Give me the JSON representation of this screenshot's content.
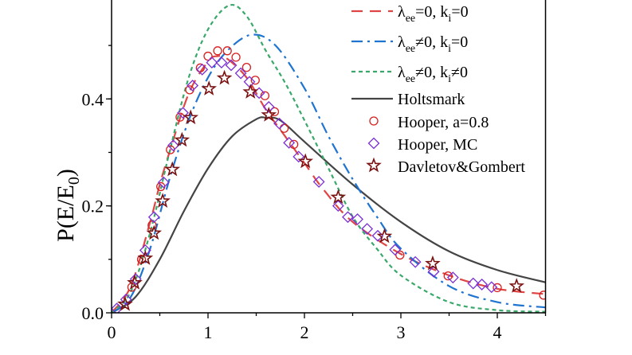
{
  "chart_data": {
    "type": "line",
    "title": "",
    "xlabel": "",
    "ylabel": "P(E/E0)",
    "ylabel_main": "P(E/E",
    "ylabel_sub": "0",
    "ylabel_close": ")",
    "xlim": [
      0,
      4.5
    ],
    "ylim": [
      0,
      0.585
    ],
    "xticks": [
      0,
      1,
      2,
      3,
      4
    ],
    "xtick_labels": [
      "0",
      "1",
      "2",
      "3",
      "4"
    ],
    "yticks": [
      0,
      0.2,
      0.4
    ],
    "ytick_labels": [
      "0.0",
      "0.2",
      "0.4"
    ],
    "grid": false,
    "legend_position": "top-right",
    "series": [
      {
        "name": "λee=0, ki=0",
        "label_main": "λ",
        "label_sub1": "ee",
        "label_mid": "=0, k",
        "label_sub2": "i",
        "label_end": "=0",
        "style": "dash",
        "color": "#e04545",
        "x": [
          0,
          0.2,
          0.4,
          0.5,
          0.6,
          0.8,
          1.0,
          1.1,
          1.2,
          1.4,
          1.6,
          1.8,
          2.0,
          2.2,
          2.5,
          3.0,
          3.5,
          4.0,
          4.5
        ],
        "y": [
          0,
          0.05,
          0.17,
          0.24,
          0.3,
          0.41,
          0.47,
          0.48,
          0.475,
          0.44,
          0.38,
          0.33,
          0.28,
          0.23,
          0.17,
          0.11,
          0.07,
          0.045,
          0.035
        ]
      },
      {
        "name": "λee≠0, ki=0",
        "label_main": "λ",
        "label_sub1": "ee",
        "label_mid": "≠0, k",
        "label_sub2": "i",
        "label_end": "=0",
        "style": "dashdot",
        "color": "#1f74d0",
        "x": [
          0,
          0.2,
          0.4,
          0.6,
          0.8,
          1.0,
          1.2,
          1.45,
          1.7,
          2.0,
          2.25,
          2.5,
          2.75,
          3.0,
          3.5,
          4.0,
          4.5
        ],
        "y": [
          0,
          0.03,
          0.12,
          0.25,
          0.36,
          0.44,
          0.49,
          0.52,
          0.5,
          0.42,
          0.33,
          0.25,
          0.18,
          0.12,
          0.05,
          0.02,
          0.01
        ]
      },
      {
        "name": "λee≠0, ki≠0",
        "label_main": "λ",
        "label_sub1": "ee",
        "label_mid": "≠0, k",
        "label_sub2": "i",
        "label_end": "≠0",
        "style": "shortdash",
        "color": "#3aa86a",
        "x": [
          0,
          0.2,
          0.4,
          0.6,
          0.8,
          1.0,
          1.22,
          1.4,
          1.6,
          1.8,
          2.0,
          2.25,
          2.5,
          2.75,
          3.0,
          3.5,
          4.0,
          4.5
        ],
        "y": [
          0,
          0.04,
          0.15,
          0.3,
          0.44,
          0.53,
          0.575,
          0.555,
          0.49,
          0.43,
          0.36,
          0.27,
          0.18,
          0.12,
          0.07,
          0.02,
          0.005,
          0.002
        ]
      },
      {
        "name": "Holtsmark",
        "label_main": "Holtsmark",
        "style": "solid",
        "color": "#444444",
        "x": [
          0,
          0.25,
          0.5,
          0.75,
          1.0,
          1.25,
          1.5,
          1.6,
          1.75,
          2.0,
          2.5,
          3.0,
          3.5,
          4.0,
          4.5
        ],
        "y": [
          0,
          0.03,
          0.1,
          0.19,
          0.27,
          0.33,
          0.362,
          0.365,
          0.36,
          0.32,
          0.24,
          0.17,
          0.115,
          0.08,
          0.057
        ]
      },
      {
        "name": "Hooper, a=0.8",
        "label_main": "Hooper, a=0.8",
        "style": "marker-circle",
        "color": "#d62020",
        "x": [
          0.21,
          0.31,
          0.42,
          0.51,
          0.61,
          0.71,
          0.81,
          0.92,
          1.0,
          1.1,
          1.2,
          1.29,
          1.4,
          1.49,
          1.59,
          1.69,
          1.79,
          1.89,
          2.99,
          3.49,
          4.0,
          4.48
        ],
        "y": [
          0.048,
          0.1,
          0.164,
          0.236,
          0.305,
          0.366,
          0.417,
          0.458,
          0.48,
          0.49,
          0.49,
          0.478,
          0.459,
          0.435,
          0.406,
          0.376,
          0.345,
          0.315,
          0.108,
          0.069,
          0.047,
          0.033
        ]
      },
      {
        "name": "Hooper, MC",
        "label_main": "Hooper, MC",
        "style": "marker-diamond",
        "color": "#7a2fd6",
        "x": [
          0.055,
          0.15,
          0.25,
          0.35,
          0.44,
          0.54,
          0.64,
          0.74,
          0.84,
          0.94,
          1.04,
          1.14,
          1.24,
          1.34,
          1.43,
          1.53,
          1.63,
          1.74,
          1.84,
          1.94,
          2.15,
          2.35,
          2.45,
          2.55,
          2.65,
          2.76,
          2.94,
          3.15,
          3.34,
          3.54,
          3.75,
          3.84,
          3.94
        ],
        "y": [
          0.008,
          0.025,
          0.063,
          0.117,
          0.179,
          0.244,
          0.313,
          0.374,
          0.425,
          0.455,
          0.468,
          0.468,
          0.463,
          0.448,
          0.432,
          0.411,
          0.385,
          0.354,
          0.318,
          0.292,
          0.245,
          0.2,
          0.179,
          0.175,
          0.157,
          0.144,
          0.118,
          0.095,
          0.077,
          0.066,
          0.055,
          0.053,
          0.048
        ]
      },
      {
        "name": "Davletov&Gombert",
        "label_main": "Davletov&Gombert",
        "style": "marker-star",
        "color": "#7a1010",
        "x": [
          0.14,
          0.24,
          0.35,
          0.44,
          0.53,
          0.63,
          0.73,
          0.82,
          1.01,
          1.17,
          1.44,
          1.63,
          2.01,
          2.35,
          2.83,
          3.33,
          4.2
        ],
        "y": [
          0.016,
          0.056,
          0.102,
          0.149,
          0.209,
          0.268,
          0.323,
          0.365,
          0.419,
          0.439,
          0.413,
          0.37,
          0.283,
          0.216,
          0.143,
          0.092,
          0.05
        ]
      }
    ]
  }
}
